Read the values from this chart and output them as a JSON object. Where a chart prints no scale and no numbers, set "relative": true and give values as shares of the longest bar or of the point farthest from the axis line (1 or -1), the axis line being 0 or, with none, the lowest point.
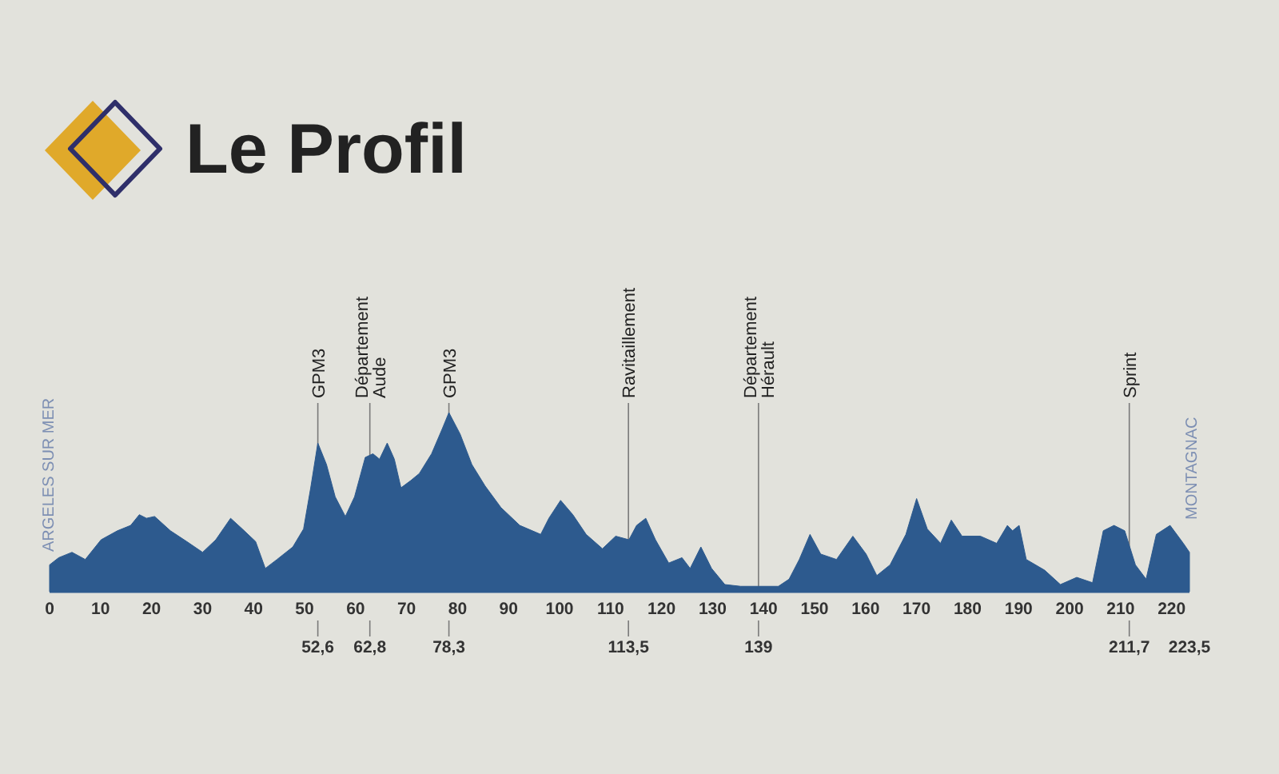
{
  "chart_data": {
    "type": "area",
    "title": "Le Profil",
    "relative": true,
    "x": [
      0,
      1.8,
      4.4,
      7.0,
      10.1,
      13.3,
      15.9,
      17.6,
      19.0,
      20.6,
      23.7,
      26.9,
      30.0,
      32.6,
      35.5,
      37.8,
      40.4,
      42.3,
      44.6,
      47.7,
      49.8,
      51.2,
      52.6,
      54.3,
      56.0,
      58.0,
      59.8,
      61.9,
      63.4,
      64.7,
      66.2,
      67.6,
      68.9,
      70.8,
      72.5,
      74.9,
      77.0,
      78.3,
      80.5,
      82.8,
      85.4,
      88.5,
      92.2,
      96.3,
      97.9,
      100.2,
      102.6,
      105.2,
      108.4,
      111.0,
      113.6,
      115.1,
      116.9,
      118.8,
      121.4,
      124.0,
      125.6,
      127.7,
      129.8,
      132.4,
      135.5,
      142.9,
      145.0,
      147.0,
      149.1,
      151.2,
      154.3,
      157.5,
      160.1,
      162.2,
      164.8,
      167.9,
      170.0,
      172.1,
      174.7,
      176.8,
      178.9,
      182.5,
      185.7,
      187.8,
      188.8,
      190.1,
      191.5,
      195.1,
      198.2,
      201.4,
      204.5,
      206.6,
      208.7,
      210.8,
      212.9,
      215.0,
      217.0,
      219.7,
      222.3,
      223.5
    ],
    "series": [
      {
        "color": "#2d5a8e",
        "values": [
          0.15,
          0.19,
          0.22,
          0.18,
          0.29,
          0.34,
          0.37,
          0.43,
          0.41,
          0.42,
          0.34,
          0.28,
          0.22,
          0.29,
          0.41,
          0.35,
          0.28,
          0.13,
          0.18,
          0.25,
          0.35,
          0.58,
          0.83,
          0.71,
          0.53,
          0.42,
          0.53,
          0.75,
          0.77,
          0.74,
          0.83,
          0.74,
          0.58,
          0.62,
          0.66,
          0.77,
          0.91,
          1.0,
          0.88,
          0.71,
          0.59,
          0.47,
          0.37,
          0.32,
          0.41,
          0.51,
          0.43,
          0.32,
          0.24,
          0.31,
          0.29,
          0.37,
          0.41,
          0.29,
          0.16,
          0.19,
          0.13,
          0.25,
          0.13,
          0.04,
          0.03,
          0.03,
          0.07,
          0.18,
          0.32,
          0.21,
          0.18,
          0.31,
          0.21,
          0.09,
          0.15,
          0.32,
          0.52,
          0.35,
          0.27,
          0.4,
          0.31,
          0.31,
          0.27,
          0.37,
          0.34,
          0.37,
          0.18,
          0.12,
          0.04,
          0.08,
          0.05,
          0.34,
          0.37,
          0.34,
          0.15,
          0.07,
          0.32,
          0.37,
          0.27,
          0.22
        ]
      }
    ],
    "xlim": [
      0,
      223.5
    ],
    "xticks": [
      0,
      10,
      20,
      30,
      40,
      50,
      60,
      70,
      80,
      90,
      100,
      110,
      120,
      130,
      140,
      150,
      160,
      170,
      180,
      190,
      200,
      210,
      220
    ],
    "x2lim": [
      0,
      223.5
    ],
    "x2ticks": [
      {
        "value": 52.6,
        "label": "52,6"
      },
      {
        "value": 62.8,
        "label": "62,8"
      },
      {
        "value": 78.3,
        "label": "78,3"
      },
      {
        "value": 113.5,
        "label": "113,5"
      },
      139,
      {
        "value": 211.7,
        "label": "211,7"
      },
      {
        "value": 223.5,
        "label": "223,5"
      }
    ],
    "ref_lines": [
      {
        "axis": "x",
        "value": 52.6,
        "label": "GPM3",
        "color": "#7a7a7a"
      },
      {
        "axis": "x",
        "value": 62.8,
        "label": "Département Aude",
        "color": "#7a7a7a"
      },
      {
        "axis": "x",
        "value": 78.3,
        "label": "GPM3",
        "color": "#7a7a7a"
      },
      {
        "axis": "x",
        "value": 113.5,
        "label": "Ravitaillement",
        "color": "#7a7a7a"
      },
      {
        "axis": "x",
        "value": 139,
        "label": "Département Hérault",
        "color": "#7a7a7a"
      },
      {
        "axis": "x",
        "value": 211.7,
        "label": "Sprint",
        "color": "#7a7a7a"
      }
    ],
    "annotations": [
      "ARGELES SUR MER",
      "MONTAGNAC"
    ]
  }
}
